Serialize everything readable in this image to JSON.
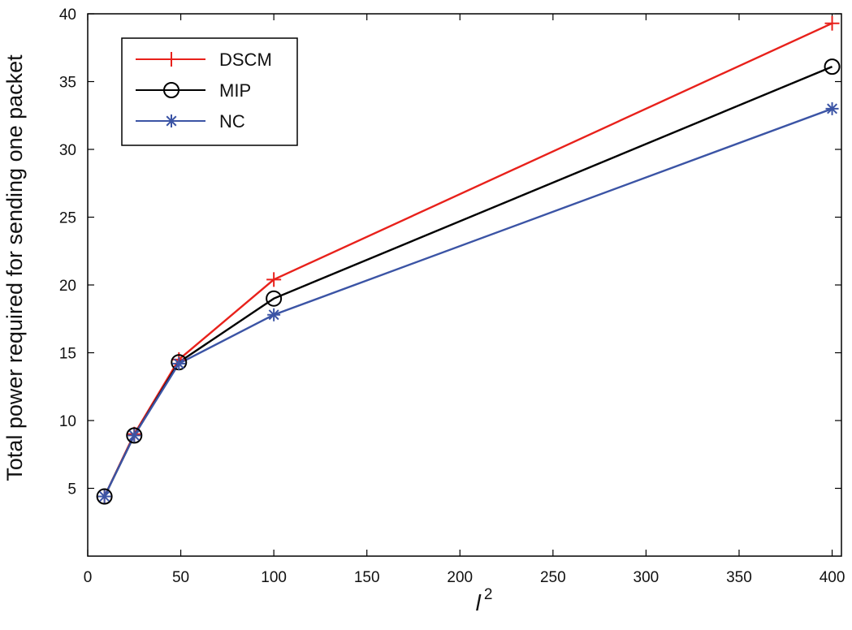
{
  "chart_data": {
    "type": "line",
    "title": "",
    "xlabel": "l",
    "xlabel_superscript": "2",
    "ylabel": "Total power required for sending one packet",
    "xlim": [
      0,
      405
    ],
    "ylim": [
      0,
      40
    ],
    "xticks": [
      0,
      50,
      100,
      150,
      200,
      250,
      300,
      350,
      400
    ],
    "yticks": [
      5,
      10,
      15,
      20,
      25,
      30,
      35,
      40
    ],
    "grid": false,
    "legend_position": "top-left",
    "series": [
      {
        "name": "DSCM",
        "color": "#e8211b",
        "marker": "plus",
        "x": [
          9,
          25,
          49,
          100,
          400
        ],
        "y": [
          4.4,
          9.0,
          14.5,
          20.4,
          39.3
        ]
      },
      {
        "name": "MIP",
        "color": "#000000",
        "marker": "circle",
        "x": [
          9,
          25,
          49,
          100,
          400
        ],
        "y": [
          4.4,
          8.9,
          14.3,
          19.0,
          36.1
        ]
      },
      {
        "name": "NC",
        "color": "#3b54a5",
        "marker": "asterisk",
        "x": [
          9,
          25,
          49,
          100,
          400
        ],
        "y": [
          4.4,
          8.9,
          14.2,
          17.8,
          33.0
        ]
      }
    ]
  }
}
